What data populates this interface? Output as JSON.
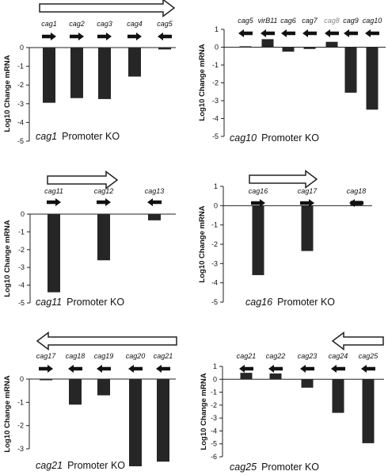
{
  "chart_data": [
    {
      "type": "bar",
      "title_gene": "cag1",
      "title_rest": "Promoter KO",
      "ylabel": "Log10 Change mRNA",
      "ylim": [
        -5,
        0
      ],
      "yticks": [
        "0",
        "-1",
        "-2",
        "-3",
        "-4",
        "-5"
      ],
      "operon_arrow": "right",
      "categories": [
        "cag1",
        "cag2",
        "cag3",
        "cag4",
        "cag5"
      ],
      "gene_arrows": [
        "right",
        "right",
        "right",
        "right",
        "left"
      ],
      "values": [
        -2.95,
        -2.7,
        -2.75,
        -1.55,
        -0.1
      ],
      "grey_labels": []
    },
    {
      "type": "bar",
      "title_gene": "cag10",
      "title_rest": "Promoter KO",
      "ylabel": "Log10 Change mRNA",
      "ylim": [
        -5,
        1
      ],
      "yticks": [
        "1",
        "0",
        "-1",
        "-2",
        "-3",
        "-4",
        "-5"
      ],
      "operon_arrow": "none",
      "categories": [
        "cag5",
        "virB11",
        "cag6",
        "cag7",
        "cag8",
        "cag9",
        "cag10"
      ],
      "gene_arrows": [
        "left",
        "left",
        "left",
        "left",
        "left",
        "left",
        "left"
      ],
      "values": [
        0.05,
        0.45,
        -0.25,
        -0.1,
        0.3,
        -2.55,
        -3.5
      ],
      "grey_labels": [
        "cag8"
      ]
    },
    {
      "type": "bar",
      "title_gene": "cag11",
      "title_rest": "Promoter KO",
      "ylabel": "Log10 Change mRNA",
      "ylim": [
        -5,
        0
      ],
      "yticks": [
        "0",
        "-1",
        "-2",
        "-3",
        "-4",
        "-5"
      ],
      "operon_arrow": "right",
      "categories": [
        "cag11",
        "cag12",
        "cag13"
      ],
      "gene_arrows": [
        "right",
        "right",
        "left"
      ],
      "values": [
        -4.4,
        -2.6,
        -0.35
      ],
      "grey_labels": []
    },
    {
      "type": "bar",
      "title_gene": "cag16",
      "title_rest": "Promoter KO",
      "ylabel": "Log10 Change mRNA",
      "ylim": [
        -5,
        1
      ],
      "yticks": [
        "1",
        "0",
        "-1",
        "-2",
        "-3",
        "-4",
        "-5"
      ],
      "operon_arrow": "right",
      "categories": [
        "cag16",
        "cag17",
        "cag18"
      ],
      "gene_arrows": [
        "right",
        "right",
        "left"
      ],
      "values": [
        -3.6,
        -2.35,
        0.25
      ],
      "grey_labels": []
    },
    {
      "type": "bar",
      "title_gene": "cag21",
      "title_rest": "Promoter KO",
      "ylabel": "Log10 Change mRNA",
      "ylim": [
        -3.5,
        0
      ],
      "yticks": [
        "0",
        "-1",
        "-2",
        "-3"
      ],
      "operon_arrow": "left",
      "categories": [
        "cag17",
        "cag18",
        "cag19",
        "cag20",
        "cag21"
      ],
      "gene_arrows": [
        "right",
        "left",
        "left",
        "left",
        "left"
      ],
      "values": [
        -0.05,
        -1.1,
        -0.7,
        -3.75,
        -3.55
      ],
      "grey_labels": []
    },
    {
      "type": "bar",
      "title_gene": "cag25",
      "title_rest": "Promoter KO",
      "ylabel": "Log10 Change mRNA",
      "ylim": [
        -6,
        1
      ],
      "yticks": [
        "1",
        "0",
        "-1",
        "-2",
        "-3",
        "-4",
        "-5",
        "-6"
      ],
      "operon_arrow": "left",
      "categories": [
        "cag21",
        "cag22",
        "cag23",
        "cag24",
        "cag25"
      ],
      "gene_arrows": [
        "left",
        "left",
        "left",
        "left",
        "left"
      ],
      "values": [
        0.5,
        0.45,
        -0.65,
        -2.6,
        -4.95
      ],
      "grey_labels": []
    }
  ]
}
